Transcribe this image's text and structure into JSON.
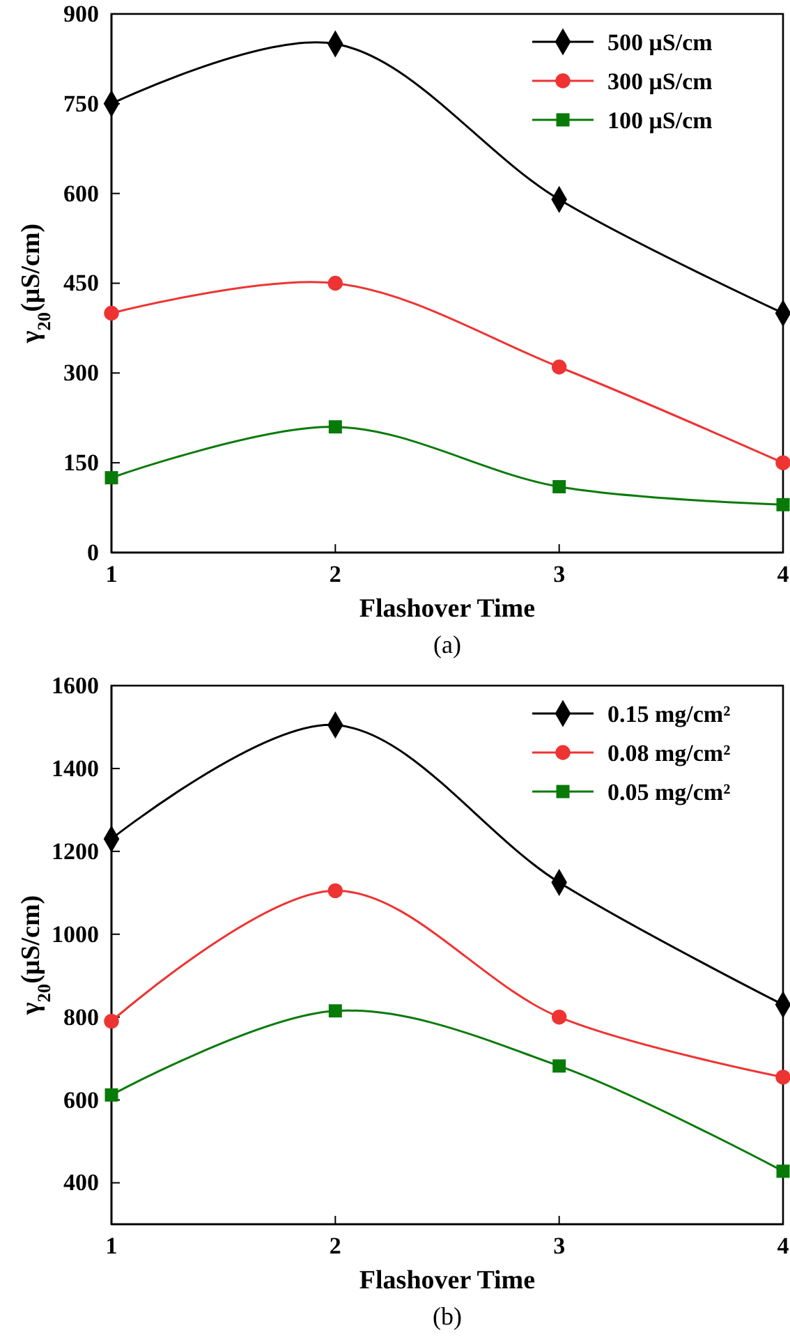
{
  "chart_data": [
    {
      "type": "line",
      "xlabel": "Flashover Time",
      "ylabel": "γ$_{20}$(μS/cm)",
      "x": [
        1,
        2,
        3,
        4
      ],
      "xlim": [
        1,
        4
      ],
      "xticks": [
        1,
        2,
        3,
        4
      ],
      "ylim": [
        0,
        900
      ],
      "yticks": [
        0,
        150,
        300,
        450,
        600,
        750,
        900
      ],
      "legend": "top right",
      "annotations": [
        "(a)"
      ],
      "series": [
        {
          "name": "500 μS/cm",
          "color": "#000000",
          "marker": "diamond",
          "values": [
            750,
            850,
            590,
            400
          ]
        },
        {
          "name": "300 μS/cm",
          "color": "#ee3333",
          "marker": "circle",
          "values": [
            400,
            450,
            310,
            150
          ]
        },
        {
          "name": "100 μS/cm",
          "color": "#087a08",
          "marker": "square",
          "values": [
            125,
            210,
            110,
            80
          ]
        }
      ]
    },
    {
      "type": "line",
      "xlabel": "Flashover Time",
      "ylabel": "γ$_{20}$(μS/cm)",
      "x": [
        1,
        2,
        3,
        4
      ],
      "xlim": [
        1,
        4
      ],
      "xticks": [
        1,
        2,
        3,
        4
      ],
      "ylim": [
        300,
        1600
      ],
      "yticks": [
        400,
        600,
        800,
        1000,
        1200,
        1400,
        1600
      ],
      "legend": "top right",
      "annotations": [
        "(b)"
      ],
      "series": [
        {
          "name": "0.15 mg/cm²",
          "color": "#000000",
          "marker": "diamond",
          "values": [
            1230,
            1505,
            1125,
            830
          ]
        },
        {
          "name": "0.08 mg/cm²",
          "color": "#ee3333",
          "marker": "circle",
          "values": [
            790,
            1105,
            800,
            655
          ]
        },
        {
          "name": "0.05 mg/cm²",
          "color": "#087a08",
          "marker": "square",
          "values": [
            612,
            815,
            682,
            428
          ]
        }
      ]
    }
  ]
}
